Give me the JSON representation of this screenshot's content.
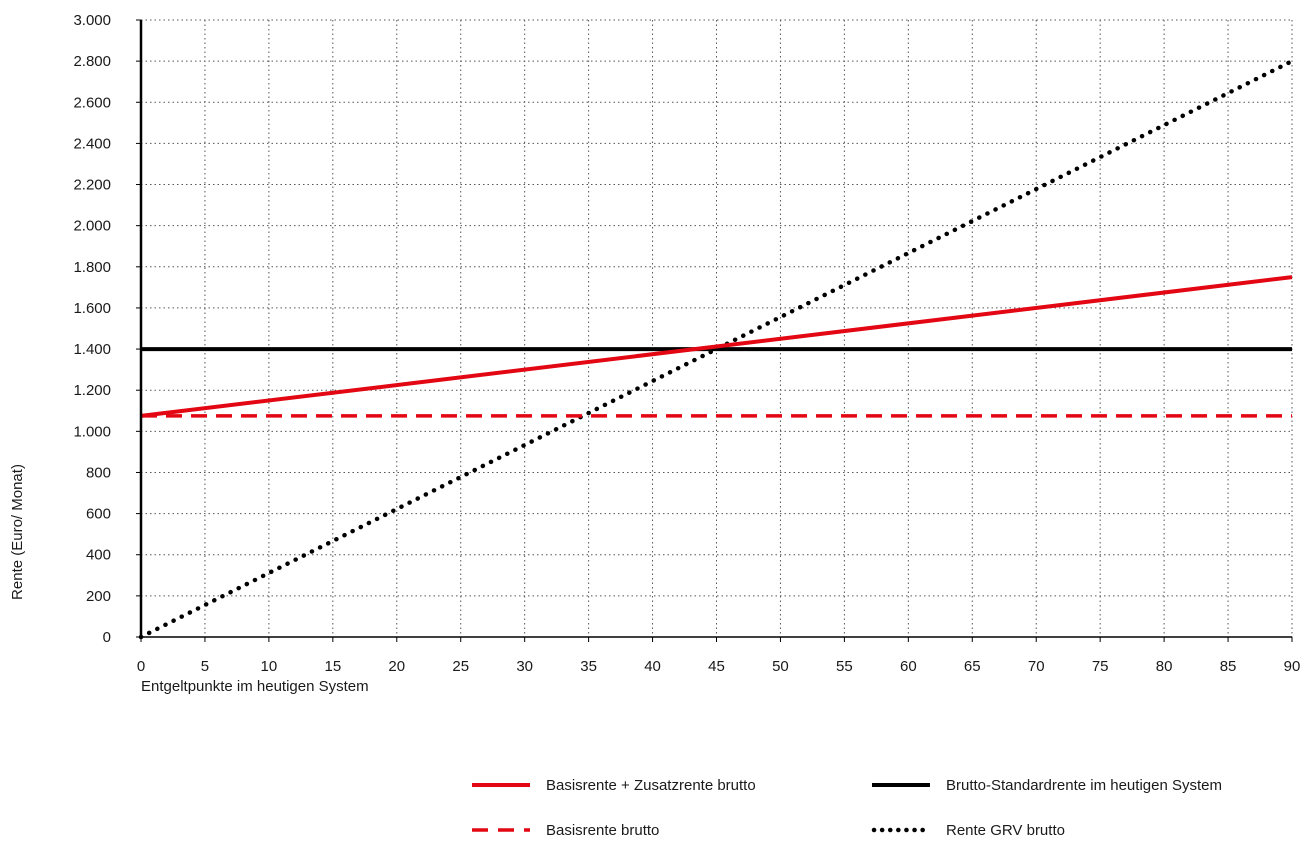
{
  "chart_data": {
    "type": "line",
    "xlabel": "Entgeltpunkte im heutigen System",
    "ylabel": "Rente (Euro/ Monat)",
    "xlim": [
      0,
      90
    ],
    "ylim": [
      0,
      3000
    ],
    "x_ticks": [
      0,
      5,
      10,
      15,
      20,
      25,
      30,
      35,
      40,
      45,
      50,
      55,
      60,
      65,
      70,
      75,
      80,
      85,
      90
    ],
    "x_tick_labels": [
      "0",
      "5",
      "10",
      "15",
      "20",
      "25",
      "30",
      "35",
      "40",
      "45",
      "50",
      "55",
      "60",
      "65",
      "70",
      "75",
      "80",
      "85",
      "90"
    ],
    "y_ticks": [
      0,
      200,
      400,
      600,
      800,
      1000,
      1200,
      1400,
      1600,
      1800,
      2000,
      2200,
      2400,
      2600,
      2800,
      3000
    ],
    "y_tick_labels": [
      "0",
      "200",
      "400",
      "600",
      "800",
      "1.000",
      "1.200",
      "1.400",
      "1.600",
      "1.800",
      "2.000",
      "2.200",
      "2.400",
      "2.600",
      "2.800",
      "3.000"
    ],
    "grid": true,
    "legend_placement": "bottom-right",
    "series": [
      {
        "name": "Basisrente + Zusatzrente brutto",
        "x": [
          0,
          90
        ],
        "y": [
          1075,
          1750
        ],
        "color": "#e30613",
        "style": "solid"
      },
      {
        "name": "Brutto-Standardrente im heutigen System",
        "x": [
          0,
          90
        ],
        "y": [
          1400,
          1400
        ],
        "color": "#000000",
        "style": "solid"
      },
      {
        "name": "Basisrente brutto",
        "x": [
          0,
          90
        ],
        "y": [
          1075,
          1075
        ],
        "color": "#e30613",
        "style": "dashed"
      },
      {
        "name": "Rente GRV brutto",
        "x": [
          0,
          90
        ],
        "y": [
          0,
          2800
        ],
        "color": "#000000",
        "style": "dotted"
      }
    ]
  }
}
